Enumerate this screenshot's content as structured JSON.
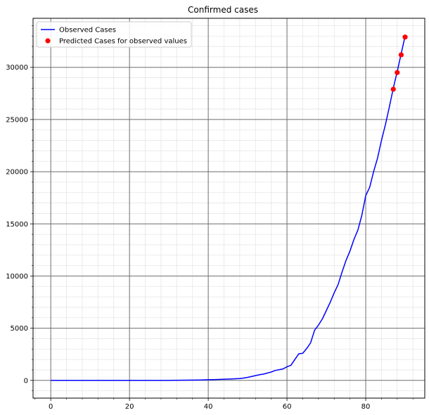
{
  "chart_data": {
    "type": "line",
    "title": "Confirmed cases",
    "xlabel": "",
    "ylabel": "",
    "xlim": [
      -4.5,
      95
    ],
    "ylim": [
      -1700,
      34700
    ],
    "x_ticks": [
      0,
      20,
      40,
      60,
      80
    ],
    "y_ticks": [
      0,
      5000,
      10000,
      15000,
      20000,
      25000,
      30000
    ],
    "grid": true,
    "legend_position": "top-left",
    "series": [
      {
        "name": "Observed Cases",
        "kind": "line",
        "color": "#0000ff",
        "x": [
          0,
          2,
          4,
          6,
          8,
          10,
          12,
          14,
          16,
          18,
          20,
          22,
          24,
          26,
          28,
          30,
          32,
          34,
          36,
          38,
          40,
          42,
          44,
          46,
          48,
          49,
          50,
          51,
          52,
          53,
          54,
          55,
          56,
          57,
          58,
          59,
          60,
          61,
          62,
          63,
          64,
          65,
          66,
          67,
          68,
          69,
          70,
          71,
          72,
          73,
          74,
          75,
          76,
          77,
          78,
          79,
          80,
          81,
          82,
          83,
          84,
          85,
          86,
          87,
          88,
          89,
          90
        ],
        "y": [
          0,
          0,
          0,
          0,
          0,
          0,
          0,
          0,
          0,
          0,
          0,
          0,
          0,
          0,
          0,
          0,
          10,
          20,
          30,
          40,
          60,
          80,
          110,
          140,
          180,
          220,
          290,
          370,
          460,
          540,
          600,
          700,
          800,
          950,
          1020,
          1100,
          1300,
          1450,
          2000,
          2550,
          2600,
          3050,
          3600,
          4800,
          5300,
          5900,
          6700,
          7500,
          8400,
          9200,
          10400,
          11500,
          12400,
          13500,
          14400,
          15800,
          17700,
          18500,
          20000,
          21300,
          23000,
          24500,
          26200,
          28000,
          29600,
          31300,
          33000
        ]
      },
      {
        "name": "Predicted Cases for observed values",
        "kind": "scatter",
        "color": "#ff0000",
        "x": [
          87,
          88,
          89,
          90
        ],
        "y": [
          27900,
          29500,
          31200,
          32900
        ]
      }
    ]
  }
}
